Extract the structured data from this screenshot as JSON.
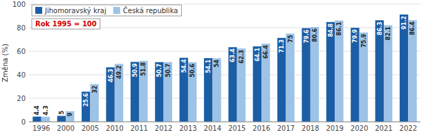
{
  "chart_data": {
    "type": "bar",
    "categories": [
      "1996",
      "2000",
      "2005",
      "2010",
      "2011",
      "2012",
      "2013",
      "2014",
      "2015",
      "2016",
      "2017",
      "2018",
      "2019",
      "2020",
      "2021",
      "2022"
    ],
    "series": [
      {
        "name": "Jihomoravský kraj",
        "color": "#1B5EA6",
        "values": [
          4.4,
          5.0,
          25.6,
          46.3,
          50.9,
          50.7,
          54.4,
          54.1,
          63.4,
          64.1,
          71.3,
          79.6,
          84.8,
          79.9,
          86.3,
          91.2
        ]
      },
      {
        "name": "Česká republika",
        "color": "#9DC3E6",
        "values": [
          4.3,
          9.0,
          32.0,
          49.2,
          51.8,
          50.7,
          50.6,
          54.0,
          62.3,
          66.4,
          75.0,
          80.6,
          86.1,
          75.9,
          82.1,
          86.4
        ]
      }
    ],
    "y_label": "Změna (%)",
    "annotations": [
      "Rok 1995 = 100"
    ],
    "ylim": [
      0,
      100
    ],
    "yticks": [
      0,
      20,
      40,
      60,
      80,
      100
    ],
    "grid": true,
    "legend": "upper left",
    "data_labels": true
  }
}
